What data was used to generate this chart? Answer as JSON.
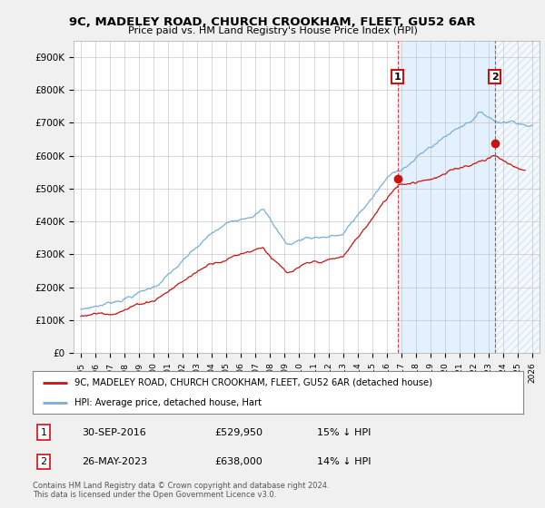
{
  "title": "9C, MADELEY ROAD, CHURCH CROOKHAM, FLEET, GU52 6AR",
  "subtitle": "Price paid vs. HM Land Registry's House Price Index (HPI)",
  "ylim": [
    0,
    950000
  ],
  "yticks": [
    0,
    100000,
    200000,
    300000,
    400000,
    500000,
    600000,
    700000,
    800000,
    900000
  ],
  "ytick_labels": [
    "£0",
    "£100K",
    "£200K",
    "£300K",
    "£400K",
    "£500K",
    "£600K",
    "£700K",
    "£800K",
    "£900K"
  ],
  "hpi_color": "#7aaddb",
  "price_color": "#cc1111",
  "sale1_x": 2016.75,
  "sale1_y": 529950,
  "sale2_x": 2023.42,
  "sale2_y": 638000,
  "vline_color": "#dd4444",
  "shade_color": "#ddeeff",
  "legend_label1": "9C, MADELEY ROAD, CHURCH CROOKHAM, FLEET, GU52 6AR (detached house)",
  "legend_label2": "HPI: Average price, detached house, Hart",
  "note1_date": "30-SEP-2016",
  "note1_price": "£529,950",
  "note1_pct": "15% ↓ HPI",
  "note2_date": "26-MAY-2023",
  "note2_price": "£638,000",
  "note2_pct": "14% ↓ HPI",
  "footer": "Contains HM Land Registry data © Crown copyright and database right 2024.\nThis data is licensed under the Open Government Licence v3.0.",
  "bg_color": "#f0f0f0",
  "plot_bg": "#ffffff",
  "xmin": 1995,
  "xmax": 2026
}
